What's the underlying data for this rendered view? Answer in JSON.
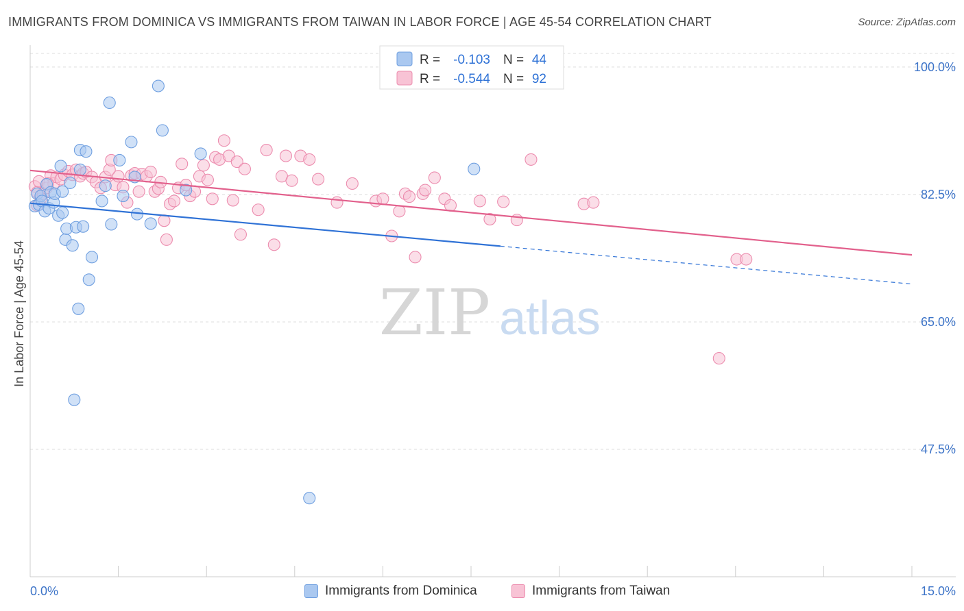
{
  "header": {
    "title": "IMMIGRANTS FROM DOMINICA VS IMMIGRANTS FROM TAIWAN IN LABOR FORCE | AGE 45-54 CORRELATION CHART",
    "source": "Source: ZipAtlas.com"
  },
  "watermark": {
    "zip": "ZIP",
    "atlas": "atlas"
  },
  "chart_data": {
    "type": "scatter",
    "title": "IMMIGRANTS FROM DOMINICA VS IMMIGRANTS FROM TAIWAN IN LABOR FORCE | AGE 45-54 CORRELATION CHART",
    "ylabel": "In Labor Force | Age 45-54",
    "xlabel": "",
    "xlim": [
      0,
      15
    ],
    "ylim": [
      30,
      103
    ],
    "x_tick_labels": [
      "0.0%",
      "15.0%"
    ],
    "y_ticks": [
      100,
      82.5,
      65,
      47.5
    ],
    "y_tick_labels": [
      "100.0%",
      "82.5%",
      "65.0%",
      "47.5%"
    ],
    "grid": true,
    "legend_position": "top-center",
    "stats_legend": [
      {
        "r_label": "R =",
        "r_value": "-0.103",
        "n_label": "N =",
        "n_value": "44"
      },
      {
        "r_label": "R =",
        "r_value": "-0.544",
        "n_label": "N =",
        "n_value": "92"
      }
    ],
    "series": [
      {
        "name": "Immigrants from Dominica",
        "color": "#6f9fe0",
        "fill": "#aac8f0",
        "line_color": "#2f72d6",
        "trend": {
          "x0": 0,
          "y0": 81.3,
          "x1": 8.0,
          "y1": 75.4,
          "dash_to_x": 15,
          "dash_to_y": 70.2
        },
        "points": [
          [
            0.08,
            80.9
          ],
          [
            0.12,
            82.6
          ],
          [
            0.15,
            81.1
          ],
          [
            0.18,
            82.3
          ],
          [
            0.2,
            81.6
          ],
          [
            0.25,
            80.2
          ],
          [
            0.28,
            83.9
          ],
          [
            0.32,
            80.6
          ],
          [
            0.35,
            82.8
          ],
          [
            0.4,
            81.4
          ],
          [
            0.42,
            82.6
          ],
          [
            0.48,
            79.6
          ],
          [
            0.52,
            86.4
          ],
          [
            0.55,
            80.0
          ],
          [
            0.6,
            76.3
          ],
          [
            0.62,
            77.8
          ],
          [
            0.68,
            84.1
          ],
          [
            0.72,
            75.5
          ],
          [
            0.78,
            78.0
          ],
          [
            0.85,
            88.6
          ],
          [
            0.9,
            78.1
          ],
          [
            0.95,
            88.4
          ],
          [
            1.0,
            70.8
          ],
          [
            1.05,
            73.9
          ],
          [
            1.22,
            81.6
          ],
          [
            1.28,
            83.7
          ],
          [
            1.35,
            95.1
          ],
          [
            1.38,
            78.4
          ],
          [
            1.52,
            87.2
          ],
          [
            1.58,
            82.3
          ],
          [
            1.72,
            89.7
          ],
          [
            1.78,
            84.9
          ],
          [
            1.82,
            79.8
          ],
          [
            2.05,
            78.5
          ],
          [
            2.18,
            97.4
          ],
          [
            2.25,
            91.3
          ],
          [
            2.65,
            83.1
          ],
          [
            2.9,
            88.1
          ],
          [
            0.82,
            66.8
          ],
          [
            0.75,
            54.3
          ],
          [
            0.85,
            85.9
          ],
          [
            0.55,
            82.9
          ],
          [
            4.75,
            40.8
          ],
          [
            7.55,
            86.0
          ]
        ]
      },
      {
        "name": "Immigrants from Taiwan",
        "color": "#ec8cae",
        "fill": "#f8c3d5",
        "line_color": "#e2608c",
        "trend": {
          "x0": 0,
          "y0": 85.8,
          "x1": 15,
          "y1": 74.2
        },
        "points": [
          [
            0.08,
            83.6
          ],
          [
            0.12,
            82.8
          ],
          [
            0.15,
            84.3
          ],
          [
            0.18,
            81.9
          ],
          [
            0.22,
            82.6
          ],
          [
            0.28,
            83.4
          ],
          [
            0.35,
            85.1
          ],
          [
            0.4,
            84.0
          ],
          [
            0.45,
            84.9
          ],
          [
            0.52,
            84.6
          ],
          [
            0.58,
            85.2
          ],
          [
            0.65,
            85.7
          ],
          [
            0.72,
            85.2
          ],
          [
            0.78,
            85.9
          ],
          [
            0.85,
            85.0
          ],
          [
            0.9,
            85.4
          ],
          [
            0.95,
            85.6
          ],
          [
            1.05,
            84.9
          ],
          [
            1.12,
            84.2
          ],
          [
            1.2,
            83.4
          ],
          [
            1.28,
            84.9
          ],
          [
            1.35,
            85.9
          ],
          [
            1.38,
            87.2
          ],
          [
            1.45,
            83.8
          ],
          [
            1.5,
            85.0
          ],
          [
            1.58,
            83.5
          ],
          [
            1.65,
            81.4
          ],
          [
            1.72,
            85.1
          ],
          [
            1.78,
            85.4
          ],
          [
            1.85,
            82.9
          ],
          [
            1.9,
            85.3
          ],
          [
            1.98,
            85.0
          ],
          [
            2.05,
            85.6
          ],
          [
            2.12,
            82.9
          ],
          [
            2.18,
            83.3
          ],
          [
            2.22,
            84.2
          ],
          [
            2.28,
            78.9
          ],
          [
            2.32,
            76.3
          ],
          [
            2.38,
            81.2
          ],
          [
            2.45,
            81.6
          ],
          [
            2.52,
            83.4
          ],
          [
            2.58,
            86.7
          ],
          [
            2.65,
            83.8
          ],
          [
            2.72,
            82.3
          ],
          [
            2.8,
            82.9
          ],
          [
            2.88,
            85.0
          ],
          [
            2.95,
            86.5
          ],
          [
            3.02,
            84.5
          ],
          [
            3.1,
            81.9
          ],
          [
            3.15,
            87.6
          ],
          [
            3.22,
            87.3
          ],
          [
            3.3,
            89.9
          ],
          [
            3.38,
            87.8
          ],
          [
            3.45,
            81.7
          ],
          [
            3.52,
            87.0
          ],
          [
            3.58,
            77.0
          ],
          [
            3.65,
            86.0
          ],
          [
            3.88,
            80.4
          ],
          [
            4.02,
            88.6
          ],
          [
            4.15,
            75.6
          ],
          [
            4.28,
            85.0
          ],
          [
            4.35,
            87.8
          ],
          [
            4.45,
            84.4
          ],
          [
            4.6,
            87.8
          ],
          [
            4.75,
            87.3
          ],
          [
            4.9,
            84.6
          ],
          [
            5.22,
            81.4
          ],
          [
            5.48,
            84.0
          ],
          [
            5.88,
            81.6
          ],
          [
            6.0,
            81.9
          ],
          [
            6.15,
            76.8
          ],
          [
            6.28,
            80.2
          ],
          [
            6.38,
            82.6
          ],
          [
            6.45,
            82.2
          ],
          [
            6.55,
            73.9
          ],
          [
            6.68,
            82.6
          ],
          [
            6.72,
            83.1
          ],
          [
            6.88,
            84.8
          ],
          [
            7.05,
            81.9
          ],
          [
            7.15,
            81.0
          ],
          [
            7.65,
            81.6
          ],
          [
            7.82,
            79.1
          ],
          [
            8.05,
            81.5
          ],
          [
            8.28,
            79.0
          ],
          [
            8.52,
            87.3
          ],
          [
            9.42,
            81.2
          ],
          [
            9.58,
            81.4
          ],
          [
            12.02,
            73.6
          ],
          [
            12.18,
            73.6
          ],
          [
            11.72,
            60.0
          ],
          [
            0.12,
            81.0
          ],
          [
            0.3,
            84.0
          ]
        ]
      }
    ]
  }
}
